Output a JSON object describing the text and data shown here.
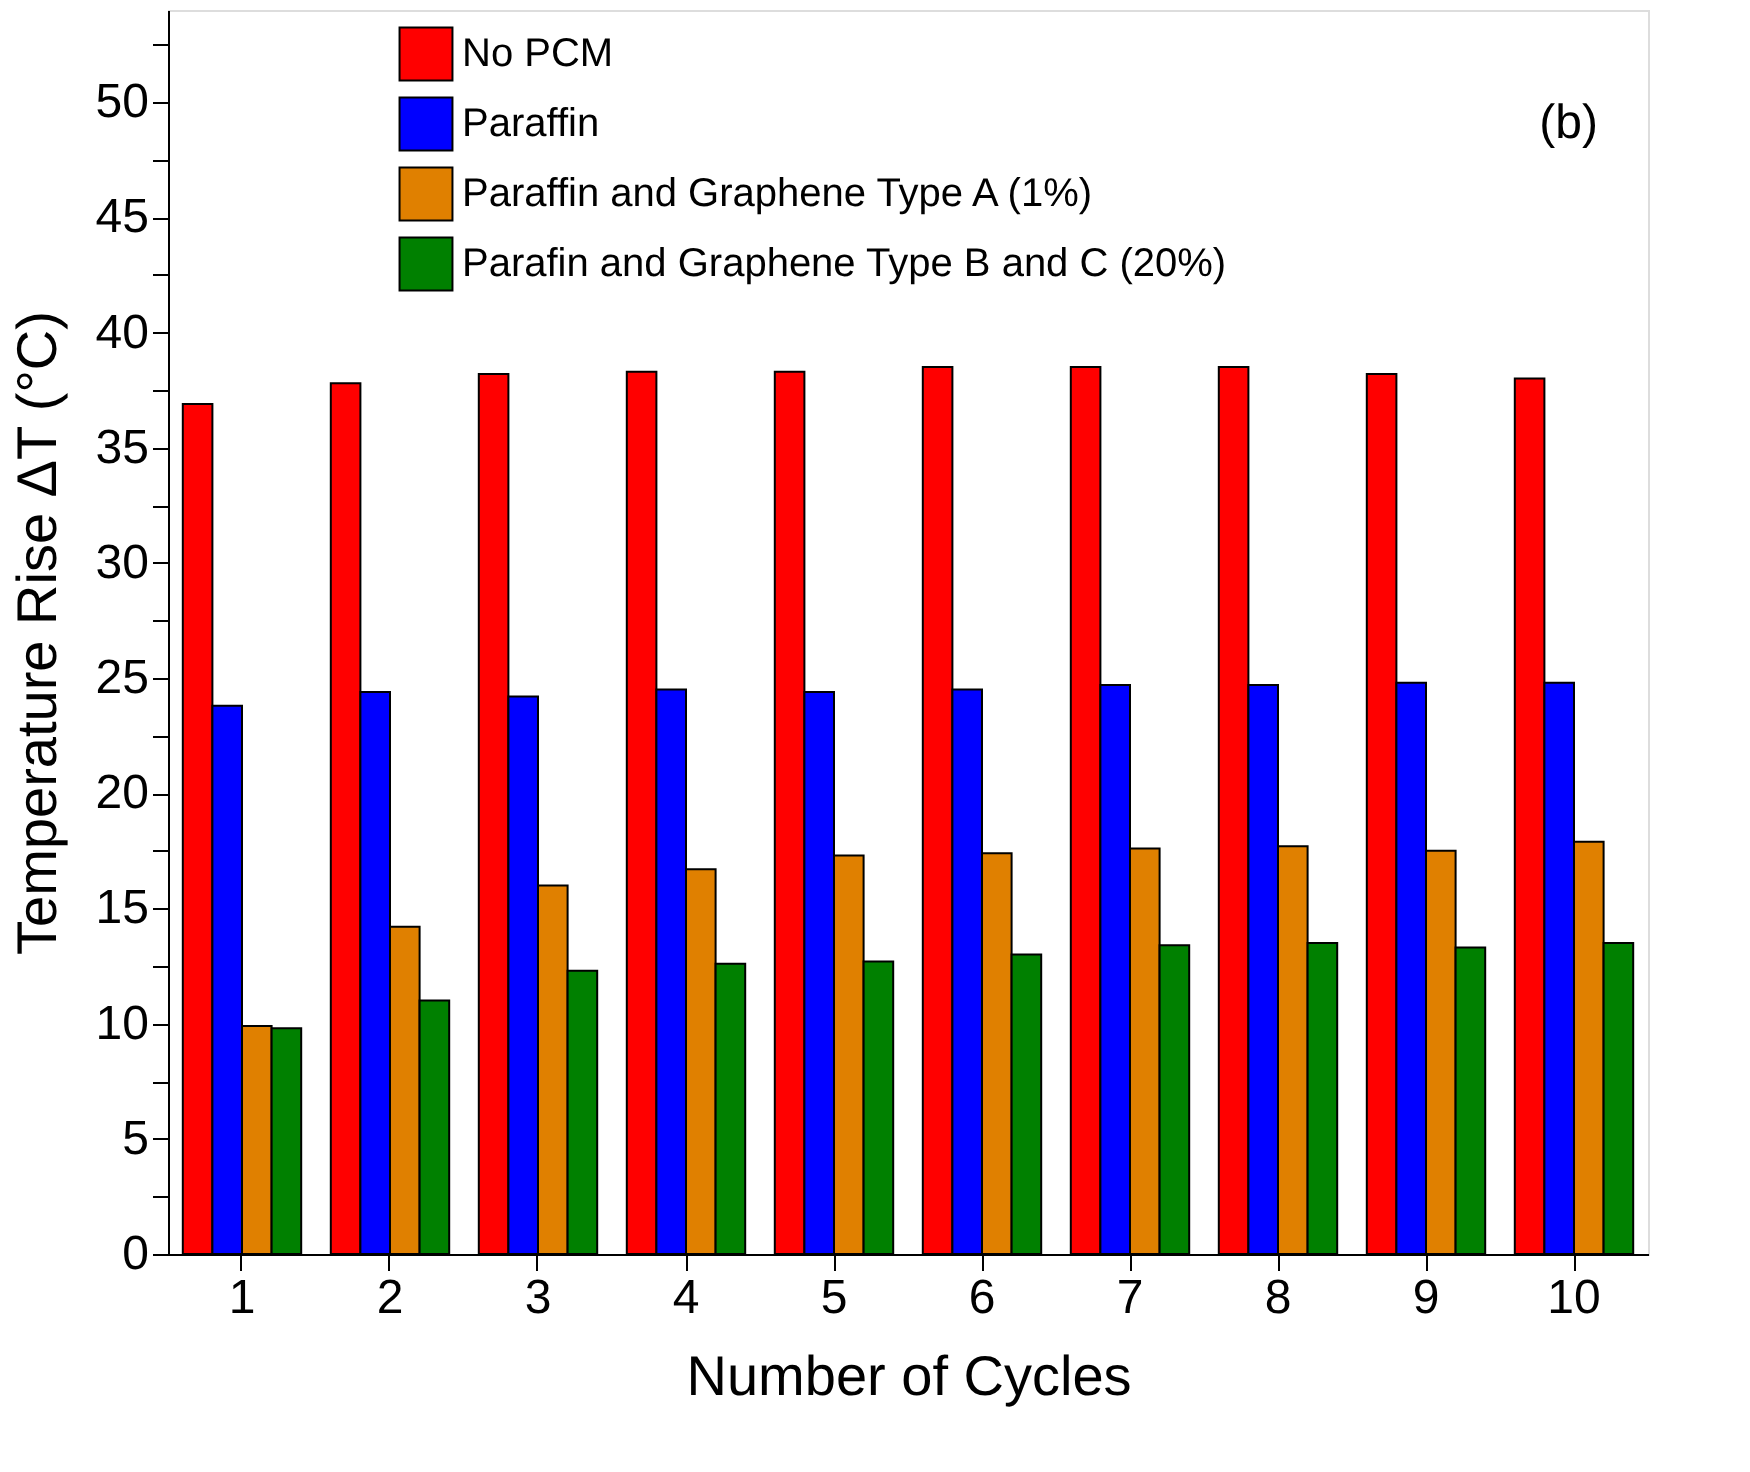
{
  "chart_data": {
    "type": "bar",
    "xlabel": "Number of Cycles",
    "ylabel": "Temperature Rise ΔT (°C)",
    "categories": [
      "1",
      "2",
      "3",
      "4",
      "5",
      "6",
      "7",
      "8",
      "9",
      "10"
    ],
    "series": [
      {
        "name": "No PCM",
        "color": "#ff0000",
        "values": [
          36.9,
          37.8,
          38.2,
          38.3,
          38.3,
          38.5,
          38.5,
          38.5,
          38.2,
          38.0
        ]
      },
      {
        "name": "Paraffin",
        "color": "#0000ff",
        "values": [
          23.8,
          24.4,
          24.2,
          24.5,
          24.4,
          24.5,
          24.7,
          24.7,
          24.8,
          24.8
        ]
      },
      {
        "name": "Paraffin and Graphene Type A (1%)",
        "color": "#e08000",
        "values": [
          9.9,
          14.2,
          16.0,
          16.7,
          17.3,
          17.4,
          17.6,
          17.7,
          17.5,
          17.9
        ]
      },
      {
        "name": "Parafin and Graphene Type B and C (20%)",
        "color": "#008000",
        "values": [
          9.8,
          11.0,
          12.3,
          12.6,
          12.7,
          13.0,
          13.4,
          13.5,
          13.3,
          13.5
        ]
      }
    ],
    "ylim": [
      0,
      54
    ],
    "yticks": [
      0,
      {
        "value": 2.5,
        "label": null
      },
      5,
      {
        "value": 7.5,
        "label": null
      },
      10,
      {
        "value": 12.5,
        "label": null
      },
      15,
      {
        "value": 17.5,
        "label": null
      },
      20,
      {
        "value": 22.5,
        "label": null
      },
      25,
      {
        "value": 27.5,
        "label": null
      },
      30,
      {
        "value": 32.5,
        "label": null
      },
      35,
      {
        "value": 37.5,
        "label": null
      },
      40,
      {
        "value": 42.5,
        "label": null
      },
      45,
      {
        "value": 47.5,
        "label": null
      },
      50,
      {
        "value": 52.5,
        "label": null
      }
    ],
    "grid": false,
    "legend": "top",
    "annotations": [
      "(b)"
    ]
  }
}
